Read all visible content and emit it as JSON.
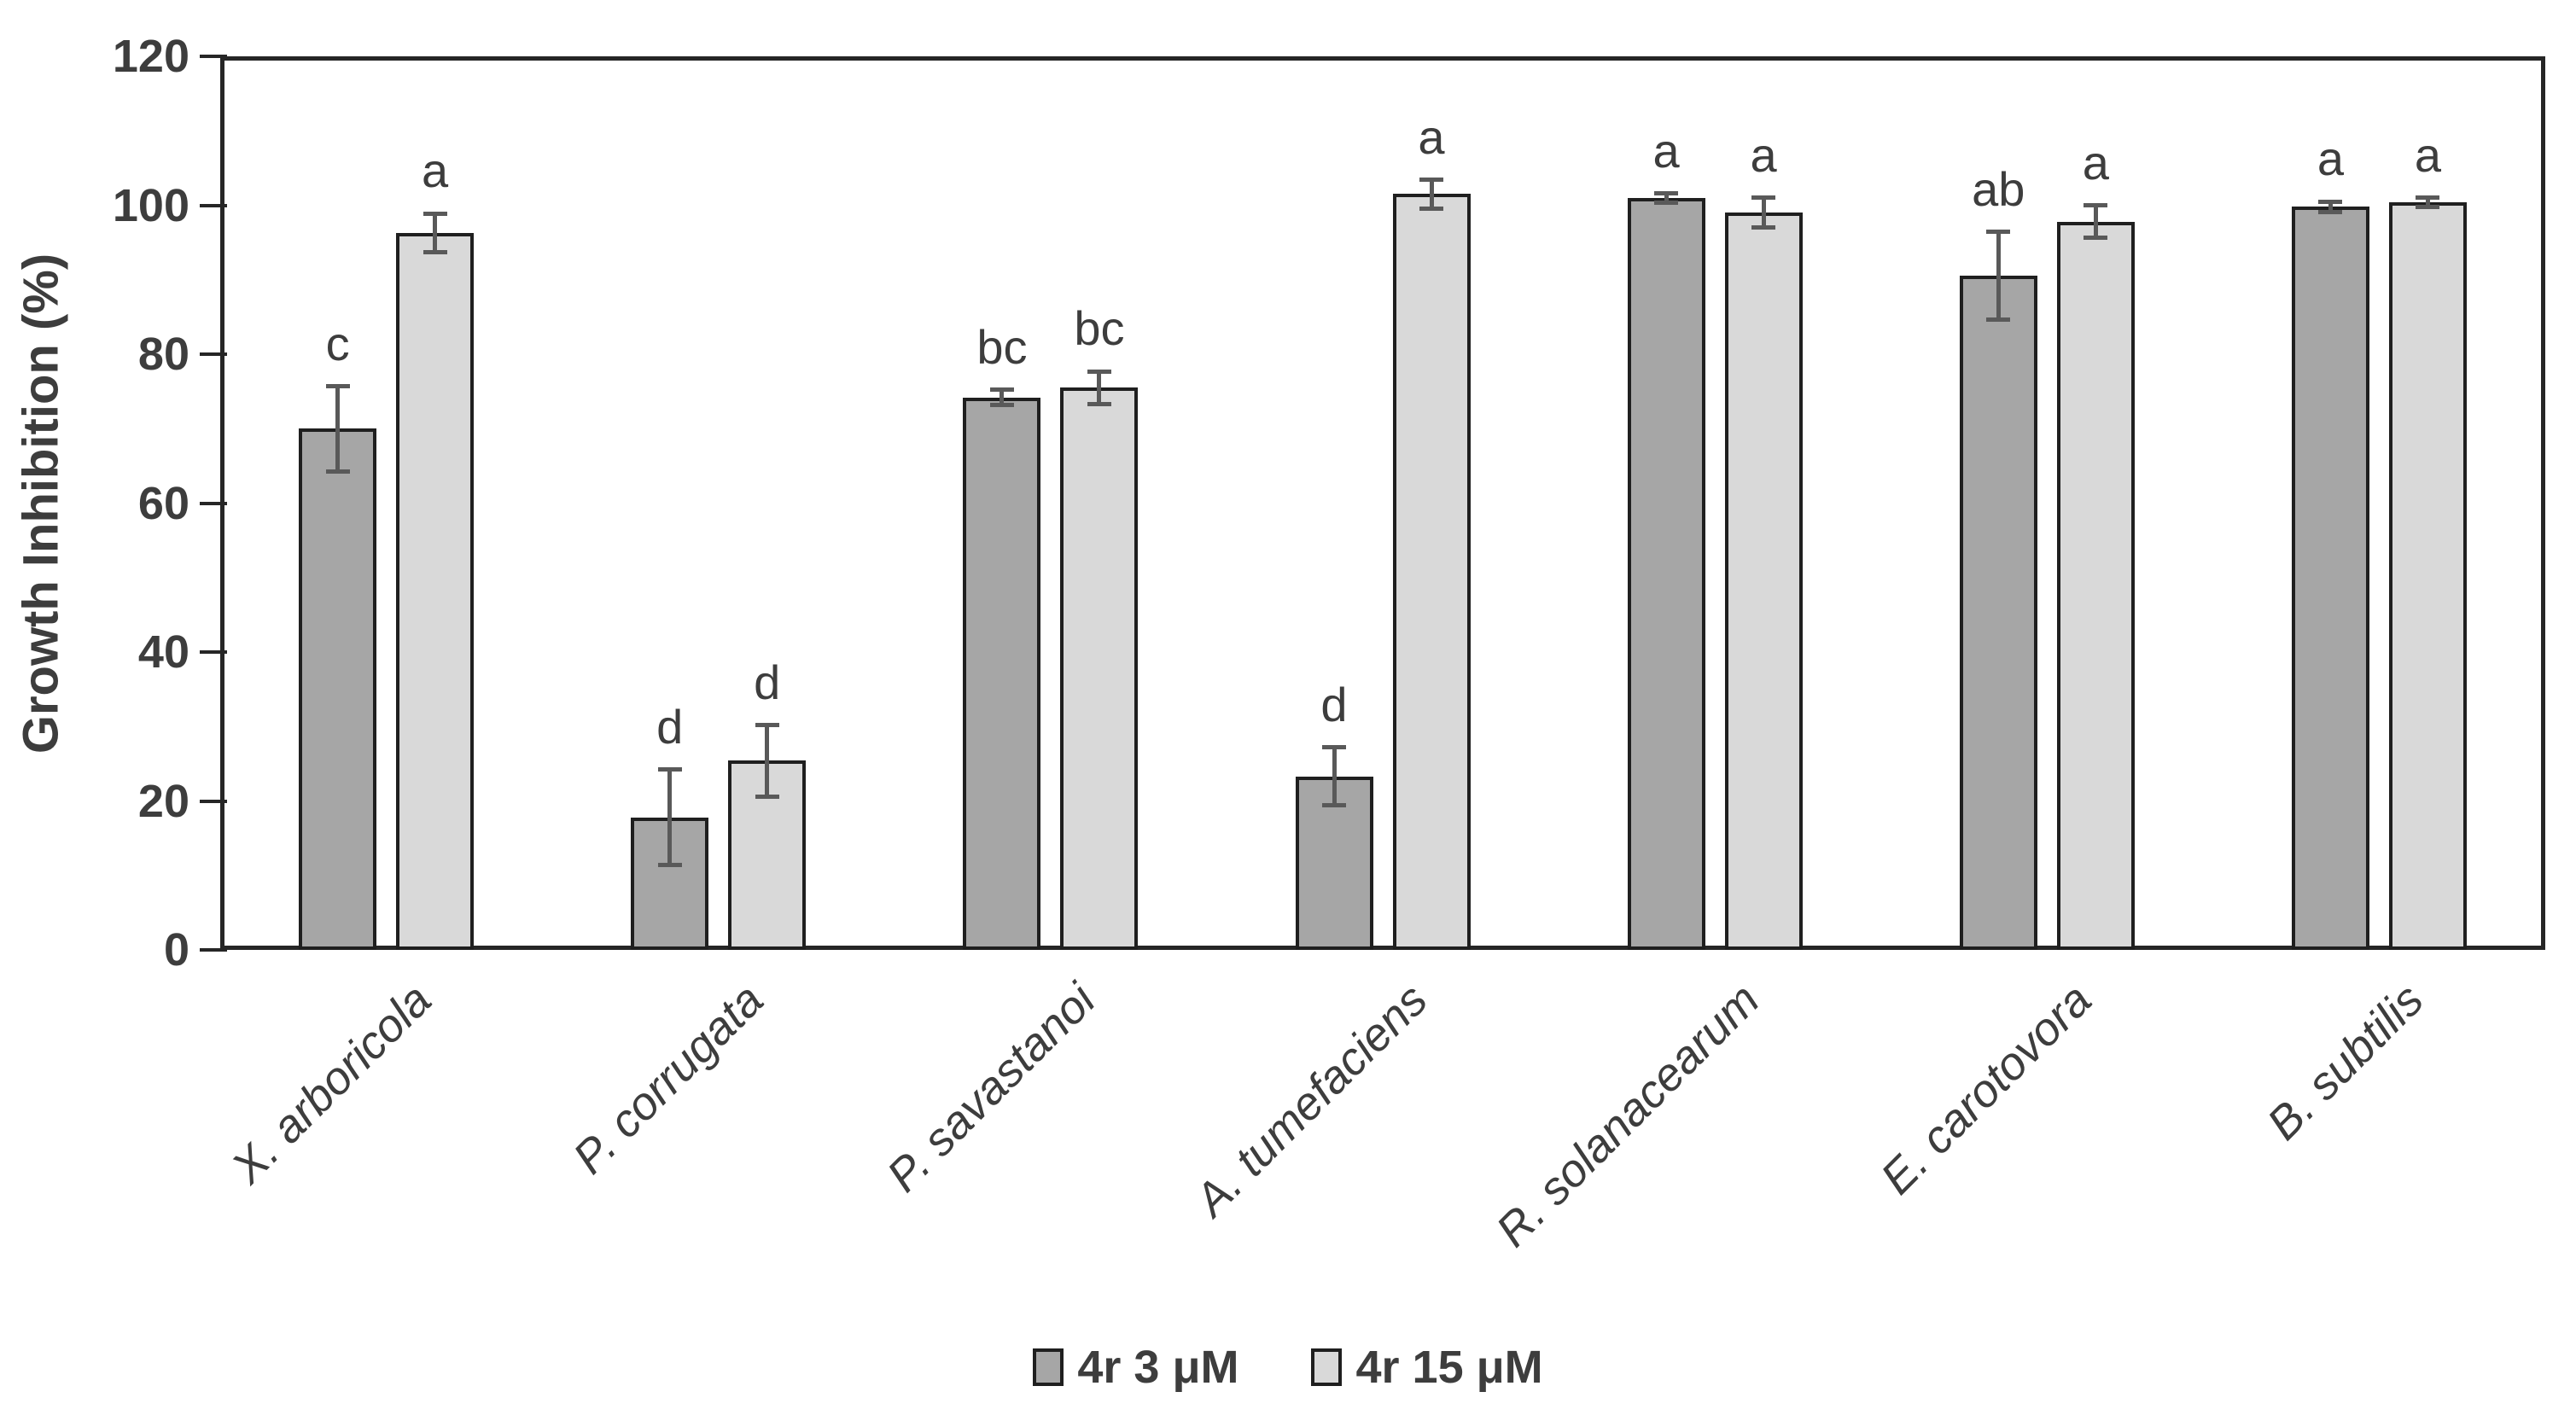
{
  "page": {
    "background": "#ffffff"
  },
  "chart_data": {
    "type": "bar",
    "title": "",
    "ylabel": "Growth Inhibition (%)",
    "xlabel": "",
    "ylim": [
      0,
      120
    ],
    "yticks": [
      0,
      20,
      40,
      60,
      80,
      100,
      120
    ],
    "grid": false,
    "legend_position": "bottom-center",
    "category_label_style": "italic, rotated 45deg",
    "categories": [
      "X. arboricola",
      "P. corrugata",
      "P. savastanoi",
      "A. tumefaciens",
      "R. solanacearum",
      "E. carotovora",
      "B. subtilis"
    ],
    "series": [
      {
        "name": "4r 3 μM",
        "color": "#A6A6A6",
        "values": [
          70,
          17.8,
          74.2,
          23.3,
          101,
          90.5,
          99.8
        ],
        "errors": [
          5.7,
          6.4,
          1.0,
          3.9,
          0.6,
          5.9,
          0.7
        ],
        "sig_letters": [
          "c",
          "d",
          "bc",
          "d",
          "a",
          "ab",
          "a"
        ]
      },
      {
        "name": "4r 15 μM",
        "color": "#D9D9D9",
        "values": [
          96.3,
          25.4,
          75.5,
          101.5,
          99,
          97.8,
          100.4
        ],
        "errors": [
          2.6,
          4.8,
          2.2,
          1.9,
          2.0,
          2.2,
          0.6
        ],
        "sig_letters": [
          "a",
          "d",
          "bc",
          "a",
          "a",
          "a",
          "a"
        ]
      }
    ],
    "bar_outline_color": "#1f1f1f",
    "error_bar_color": "#595959",
    "axis_color": "#262626",
    "text_color": "#3d3d3d"
  }
}
